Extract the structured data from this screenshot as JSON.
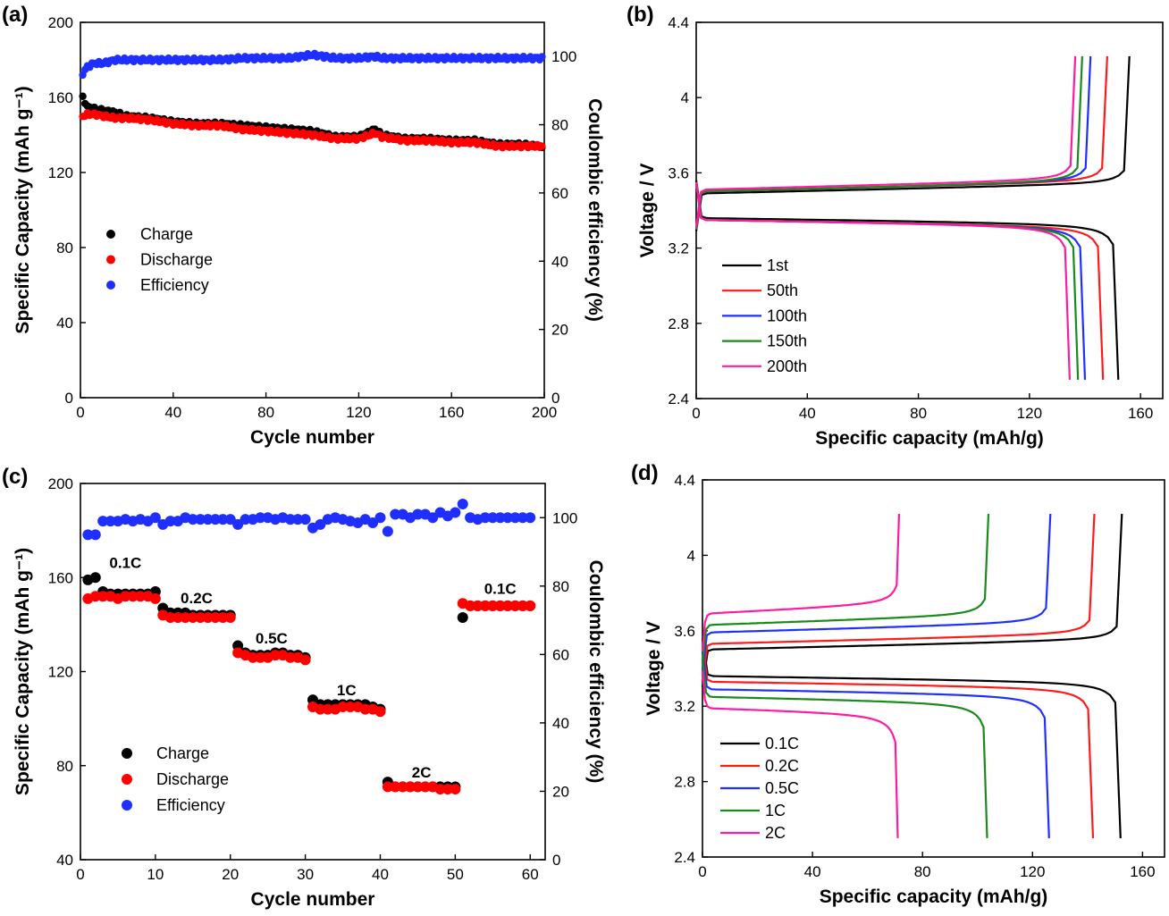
{
  "chart_data": [
    {
      "panel": "(a)",
      "type": "scatter",
      "xlabel": "Cycle number",
      "ylabel": "Specific Capacity (mAh g⁻¹)",
      "y2label": "Coulombic efficiency (%)",
      "xlim": [
        0,
        200
      ],
      "ylim": [
        0,
        200
      ],
      "y2lim": [
        0,
        110
      ],
      "xticks": [
        0,
        40,
        80,
        120,
        160,
        200
      ],
      "yticks": [
        0,
        40,
        80,
        120,
        160,
        200
      ],
      "y2ticks": [
        0,
        20,
        40,
        60,
        80,
        100
      ],
      "legend_position": "center-left",
      "series": [
        {
          "name": "Charge",
          "color": "#000000",
          "axis": "left",
          "points": [
            [
              1,
              160
            ],
            [
              3,
              155
            ],
            [
              6,
              154
            ],
            [
              10,
              153
            ],
            [
              15,
              152
            ],
            [
              20,
              150
            ],
            [
              30,
              149
            ],
            [
              40,
              147
            ],
            [
              50,
              146
            ],
            [
              60,
              146
            ],
            [
              70,
              145
            ],
            [
              80,
              144
            ],
            [
              90,
              143
            ],
            [
              100,
              142
            ],
            [
              110,
              139
            ],
            [
              120,
              139
            ],
            [
              127,
              143
            ],
            [
              130,
              140
            ],
            [
              140,
              138
            ],
            [
              150,
              138
            ],
            [
              160,
              137
            ],
            [
              170,
              137
            ],
            [
              180,
              135
            ],
            [
              190,
              135
            ],
            [
              199,
              134
            ]
          ]
        },
        {
          "name": "Discharge",
          "color": "#ff0000",
          "axis": "left",
          "points": [
            [
              1,
              150
            ],
            [
              3,
              151
            ],
            [
              6,
              151
            ],
            [
              10,
              150
            ],
            [
              15,
              149
            ],
            [
              20,
              149
            ],
            [
              30,
              148
            ],
            [
              40,
              146
            ],
            [
              50,
              145
            ],
            [
              60,
              145
            ],
            [
              70,
              143
            ],
            [
              80,
              142
            ],
            [
              90,
              141
            ],
            [
              100,
              140
            ],
            [
              110,
              138
            ],
            [
              120,
              138
            ],
            [
              127,
              141
            ],
            [
              130,
              139
            ],
            [
              140,
              137
            ],
            [
              150,
              137
            ],
            [
              160,
              136
            ],
            [
              170,
              136
            ],
            [
              180,
              134
            ],
            [
              190,
              134
            ],
            [
              199,
              134
            ]
          ]
        },
        {
          "name": "Efficiency",
          "color": "#1f2fff",
          "axis": "right",
          "points": [
            [
              1,
              95
            ],
            [
              3,
              97
            ],
            [
              6,
              98
            ],
            [
              10,
              98
            ],
            [
              15,
              99
            ],
            [
              20,
              99
            ],
            [
              30,
              99
            ],
            [
              40,
              99
            ],
            [
              50,
              99
            ],
            [
              60,
              99
            ],
            [
              70,
              99.5
            ],
            [
              80,
              99.5
            ],
            [
              90,
              99.5
            ],
            [
              100,
              100.5
            ],
            [
              110,
              99.5
            ],
            [
              120,
              99.5
            ],
            [
              127,
              100
            ],
            [
              130,
              99.5
            ],
            [
              140,
              99.5
            ],
            [
              150,
              99.5
            ],
            [
              160,
              99.5
            ],
            [
              170,
              99.5
            ],
            [
              180,
              99.5
            ],
            [
              190,
              99.5
            ],
            [
              199,
              99.5
            ]
          ]
        }
      ]
    },
    {
      "panel": "(b)",
      "type": "line",
      "xlabel": "Specific capacity (mAh/g)",
      "ylabel": "Voltage / V",
      "xlim": [
        0,
        168
      ],
      "ylim": [
        2.4,
        4.4
      ],
      "xticks": [
        0,
        40,
        80,
        120,
        160
      ],
      "yticks": [
        2.4,
        2.8,
        3.2,
        3.6,
        4.0,
        4.4
      ],
      "legend_position": "bottom-left",
      "series": [
        {
          "name": "1st",
          "color": "#000000",
          "charge_end": 156,
          "discharge_end": 152,
          "charge_plateau": 3.49,
          "discharge_plateau": 3.36
        },
        {
          "name": "50th",
          "color": "#ff1a1a",
          "charge_end": 148,
          "discharge_end": 146.5,
          "charge_plateau": 3.5,
          "discharge_plateau": 3.35
        },
        {
          "name": "100th",
          "color": "#1f2fff",
          "charge_end": 142,
          "discharge_end": 140,
          "charge_plateau": 3.5,
          "discharge_plateau": 3.35
        },
        {
          "name": "150th",
          "color": "#1a8a1a",
          "charge_end": 139,
          "discharge_end": 137.5,
          "charge_plateau": 3.5,
          "discharge_plateau": 3.35
        },
        {
          "name": "200th",
          "color": "#ff1aa0",
          "charge_end": 136.5,
          "discharge_end": 134.5,
          "charge_plateau": 3.51,
          "discharge_plateau": 3.35
        }
      ]
    },
    {
      "panel": "(c)",
      "type": "scatter",
      "xlabel": "Cycle number",
      "ylabel": "Specific Capacity (mAh g⁻¹)",
      "y2label": "Coulombic efficiency (%)",
      "xlim": [
        0,
        62
      ],
      "ylim": [
        40,
        200
      ],
      "y2lim": [
        0,
        110
      ],
      "xticks": [
        0,
        10,
        20,
        30,
        40,
        50,
        60
      ],
      "yticks": [
        40,
        80,
        120,
        160,
        200
      ],
      "y2ticks": [
        0,
        20,
        40,
        60,
        80,
        100
      ],
      "legend_position": "bottom-left",
      "rate_labels": [
        {
          "text": "0.1C",
          "x": 6,
          "y": 164
        },
        {
          "text": "0.2C",
          "x": 15.5,
          "y": 149
        },
        {
          "text": "0.5C",
          "x": 25.5,
          "y": 132
        },
        {
          "text": "1C",
          "x": 35.5,
          "y": 110
        },
        {
          "text": "2C",
          "x": 45.5,
          "y": 75
        },
        {
          "text": "0.1C",
          "x": 56,
          "y": 153
        }
      ],
      "series": [
        {
          "name": "Charge",
          "color": "#000000",
          "axis": "left",
          "values": [
            159,
            160,
            154,
            153,
            153,
            153,
            153,
            153,
            153,
            154,
            147,
            145,
            145,
            145,
            144,
            144,
            144,
            144,
            144,
            144,
            131,
            128,
            127,
            127,
            127,
            128,
            128,
            127,
            127,
            126,
            108,
            106,
            106,
            106,
            106,
            106,
            106,
            106,
            105,
            104,
            73,
            71,
            71,
            71,
            71,
            71,
            71,
            71,
            71,
            71,
            143,
            148,
            148,
            148,
            148,
            148,
            148,
            148,
            148,
            148
          ]
        },
        {
          "name": "Discharge",
          "color": "#ff0000",
          "axis": "left",
          "values": [
            151,
            152,
            152,
            152,
            151,
            152,
            152,
            152,
            152,
            151,
            144,
            143,
            143,
            143,
            143,
            143,
            143,
            143,
            143,
            143,
            128,
            127,
            126,
            126,
            126,
            127,
            127,
            126,
            126,
            125,
            105,
            104,
            104,
            104,
            105,
            105,
            105,
            104,
            104,
            103,
            71,
            71,
            71,
            71,
            71,
            71,
            71,
            70,
            70,
            70,
            149,
            148,
            148,
            148,
            148,
            148,
            148,
            148,
            148,
            148
          ]
        },
        {
          "name": "Efficiency",
          "color": "#1f2fff",
          "axis": "right",
          "values": [
            95,
            95,
            99,
            99,
            99,
            99.5,
            99,
            99.5,
            99,
            100,
            98,
            99,
            99,
            100,
            99.5,
            99.5,
            99.5,
            99.5,
            99.5,
            99.5,
            98,
            99.5,
            99.5,
            100,
            100,
            99.5,
            100,
            99.5,
            99.5,
            99.5,
            97,
            98,
            99.5,
            100,
            99.5,
            99,
            98.5,
            99.5,
            98.5,
            100,
            96,
            101,
            101,
            100,
            101,
            101,
            100,
            101.5,
            100.5,
            101.5,
            104,
            100,
            99.5,
            100,
            100,
            100,
            100,
            100,
            100,
            100
          ]
        }
      ]
    },
    {
      "panel": "(d)",
      "type": "line",
      "xlabel": "Specific capacity (mAh/g)",
      "ylabel": "Voltage / V",
      "xlim": [
        0,
        168
      ],
      "ylim": [
        2.4,
        4.4
      ],
      "xticks": [
        0,
        40,
        80,
        120,
        160
      ],
      "yticks": [
        2.4,
        2.8,
        3.2,
        3.6,
        4.0,
        4.4
      ],
      "legend_position": "bottom-left",
      "series": [
        {
          "name": "0.1C",
          "color": "#000000",
          "charge_end": 152.5,
          "discharge_end": 152,
          "charge_plateau": 3.5,
          "discharge_plateau": 3.36
        },
        {
          "name": "0.2C",
          "color": "#ff1a1a",
          "charge_end": 142.5,
          "discharge_end": 142,
          "charge_plateau": 3.53,
          "discharge_plateau": 3.33
        },
        {
          "name": "0.5C",
          "color": "#1f2fff",
          "charge_end": 126.5,
          "discharge_end": 126,
          "charge_plateau": 3.59,
          "discharge_plateau": 3.29
        },
        {
          "name": "1C",
          "color": "#1a8a1a",
          "charge_end": 104,
          "discharge_end": 103.5,
          "charge_plateau": 3.63,
          "discharge_plateau": 3.25
        },
        {
          "name": "2C",
          "color": "#ff1aa0",
          "charge_end": 71.5,
          "discharge_end": 71,
          "charge_plateau": 3.69,
          "discharge_plateau": 3.19
        }
      ]
    }
  ]
}
